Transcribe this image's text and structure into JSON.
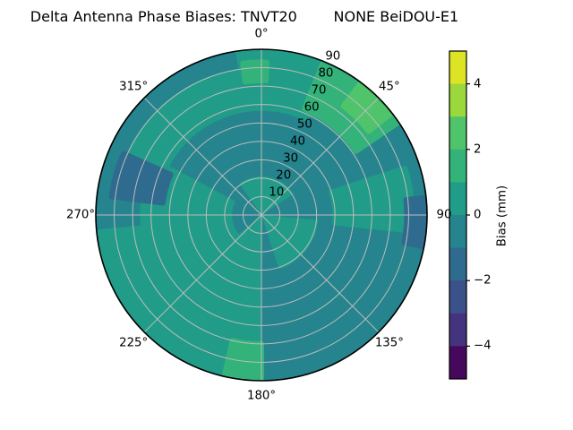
{
  "title": {
    "text": "Delta Antenna Phase Biases: TNVT20        NONE BeiDOU-E1"
  },
  "colorbar": {
    "label": "Bias (mm)",
    "tick_labels": [
      "4",
      "2",
      "0",
      "−2",
      "−4"
    ],
    "tick_values": [
      4,
      2,
      0,
      -2,
      -4
    ]
  },
  "chart_data": {
    "type": "heatmap",
    "projection": "polar",
    "title": "Delta Antenna Phase Biases: TNVT20        NONE BeiDOU-E1",
    "station": "TNVT20",
    "signal": "NONE BeiDOU-E1",
    "angular_ticks_deg": [
      0,
      45,
      90,
      135,
      180,
      225,
      270,
      315
    ],
    "angular_tick_labels": [
      "0°",
      "45°",
      "90",
      "135°",
      "180°",
      "225°",
      "270°",
      "315°"
    ],
    "angular_direction": "clockwise-from-top",
    "radial_ticks": [
      10,
      20,
      30,
      40,
      50,
      60,
      70,
      80,
      90
    ],
    "radial_range": [
      0,
      90
    ],
    "radial_label_angle_deg": 22.5,
    "grid": true,
    "gridline_color": "#bdbdbd",
    "boundary_color": "#000000",
    "colorbar": {
      "label": "Bias (mm)",
      "range": [
        -5,
        5
      ],
      "levels": [
        -5,
        -4,
        -3,
        -2,
        -1,
        0,
        1,
        2,
        3,
        4,
        5
      ],
      "tick_values": [
        4,
        2,
        0,
        -2,
        -4
      ],
      "tick_labels": [
        "4",
        "2",
        "0",
        "−2",
        "−4"
      ],
      "colormap": "viridis (10 discrete bins)",
      "bin_colors": {
        "-5..-4": "#46085C",
        "-4..-3": "#44347E",
        "-3..-2": "#3B518A",
        "-2..-1": "#2F6B8E",
        "-1..0": "#25848D",
        "0..1": "#219C88",
        "1..2": "#33B37A",
        "2..3": "#4FC46A",
        "3..4": "#9BD83C",
        "4..5": "#DDE325"
      },
      "bin_order_top_to_bottom": [
        "4..5",
        "3..4",
        "2..3",
        "1..2",
        "0..1",
        "-1..0",
        "-2..-1",
        "-3..-2",
        "-4..-3",
        "-5..-4"
      ]
    },
    "base_bin": "-1..0",
    "base_bias_mm": "-1 to 0",
    "regions": [
      {
        "theta": [
          180,
          265
        ],
        "r": [
          0,
          90
        ],
        "bin": "0..1",
        "bias_mm": "0 to 1"
      },
      {
        "theta": [
          262,
          298
        ],
        "r": [
          0,
          66
        ],
        "bin": "0..1",
        "bias_mm": "0 to 1"
      },
      {
        "theta": [
          296,
          25
        ],
        "r": [
          58,
          79
        ],
        "bin": "0..1",
        "bias_mm": "0 to 1"
      },
      {
        "theta": [
          352,
          25
        ],
        "r": [
          58,
          90
        ],
        "bin": "0..1",
        "bias_mm": "0 to 1"
      },
      {
        "theta": [
          325,
          57
        ],
        "r": [
          0,
          21
        ],
        "bin": "0..1",
        "bias_mm": "0 to 1"
      },
      {
        "theta": [
          95,
          162
        ],
        "r": [
          0,
          31
        ],
        "bin": "0..1",
        "bias_mm": "0 to 1"
      },
      {
        "theta": [
          72,
          96
        ],
        "r": [
          40,
          82
        ],
        "bin": "0..1",
        "bias_mm": "0 to 1"
      },
      {
        "theta": [
          230,
          303
        ],
        "r": [
          0,
          16
        ],
        "bin": "-1..0",
        "bias_mm": "-1 to 0"
      },
      {
        "theta": [
          22,
          56
        ],
        "r": [
          62,
          90
        ],
        "bin": "1..2",
        "bias_mm": "1 to 2"
      },
      {
        "theta": [
          353,
          2
        ],
        "r": [
          73,
          83
        ],
        "bin": "1..2",
        "bias_mm": "1 to 2"
      },
      {
        "theta": [
          180,
          193
        ],
        "r": [
          70,
          90
        ],
        "bin": "1..2",
        "bias_mm": "1 to 2"
      },
      {
        "theta": [
          37,
          52
        ],
        "r": [
          74,
          90
        ],
        "bin": "2..3",
        "bias_mm": "2 to 3"
      },
      {
        "theta": [
          277,
          294
        ],
        "r": [
          54,
          82
        ],
        "bin": "-2..-1",
        "bias_mm": "-2 to -1"
      },
      {
        "theta": [
          84,
          101
        ],
        "r": [
          79,
          90
        ],
        "bin": "-2..-1",
        "bias_mm": "-2 to -1"
      }
    ]
  }
}
